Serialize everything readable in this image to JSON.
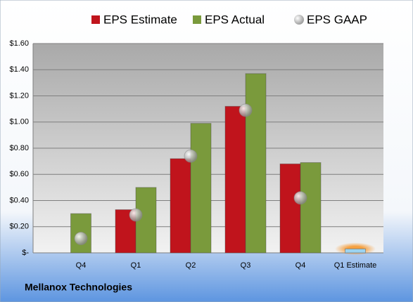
{
  "chart_data": {
    "type": "bar",
    "footer": "Mellanox Technologies",
    "categories": [
      "Q4",
      "Q1",
      "Q2",
      "Q3",
      "Q4",
      "Q1 Estimate"
    ],
    "series": [
      {
        "name": "EPS Estimate",
        "color": "#c0141c",
        "point_colors": [
          null,
          null,
          null,
          null,
          null,
          "#9cd3f0"
        ],
        "values": [
          null,
          0.33,
          0.72,
          1.12,
          0.68,
          0.03
        ]
      },
      {
        "name": "EPS Actual",
        "color": "#7a9a3c",
        "values": [
          0.3,
          0.5,
          0.99,
          1.37,
          0.69,
          null
        ]
      },
      {
        "name": "EPS GAAP",
        "color": "#a8a8a8",
        "marker": "sphere",
        "values": [
          0.11,
          0.29,
          0.74,
          1.09,
          0.42,
          null
        ]
      }
    ],
    "ylim": [
      0,
      1.6
    ],
    "yticks": [
      {
        "value": 0,
        "label": "$-"
      },
      {
        "value": 0.2,
        "label": "$0.20"
      },
      {
        "value": 0.4,
        "label": "$0.40"
      },
      {
        "value": 0.6,
        "label": "$0.60"
      },
      {
        "value": 0.8,
        "label": "$0.80"
      },
      {
        "value": 1.0,
        "label": "$1.00"
      },
      {
        "value": 1.2,
        "label": "$1.20"
      },
      {
        "value": 1.4,
        "label": "$1.40"
      },
      {
        "value": 1.6,
        "label": "$1.60"
      }
    ],
    "grid": true
  }
}
